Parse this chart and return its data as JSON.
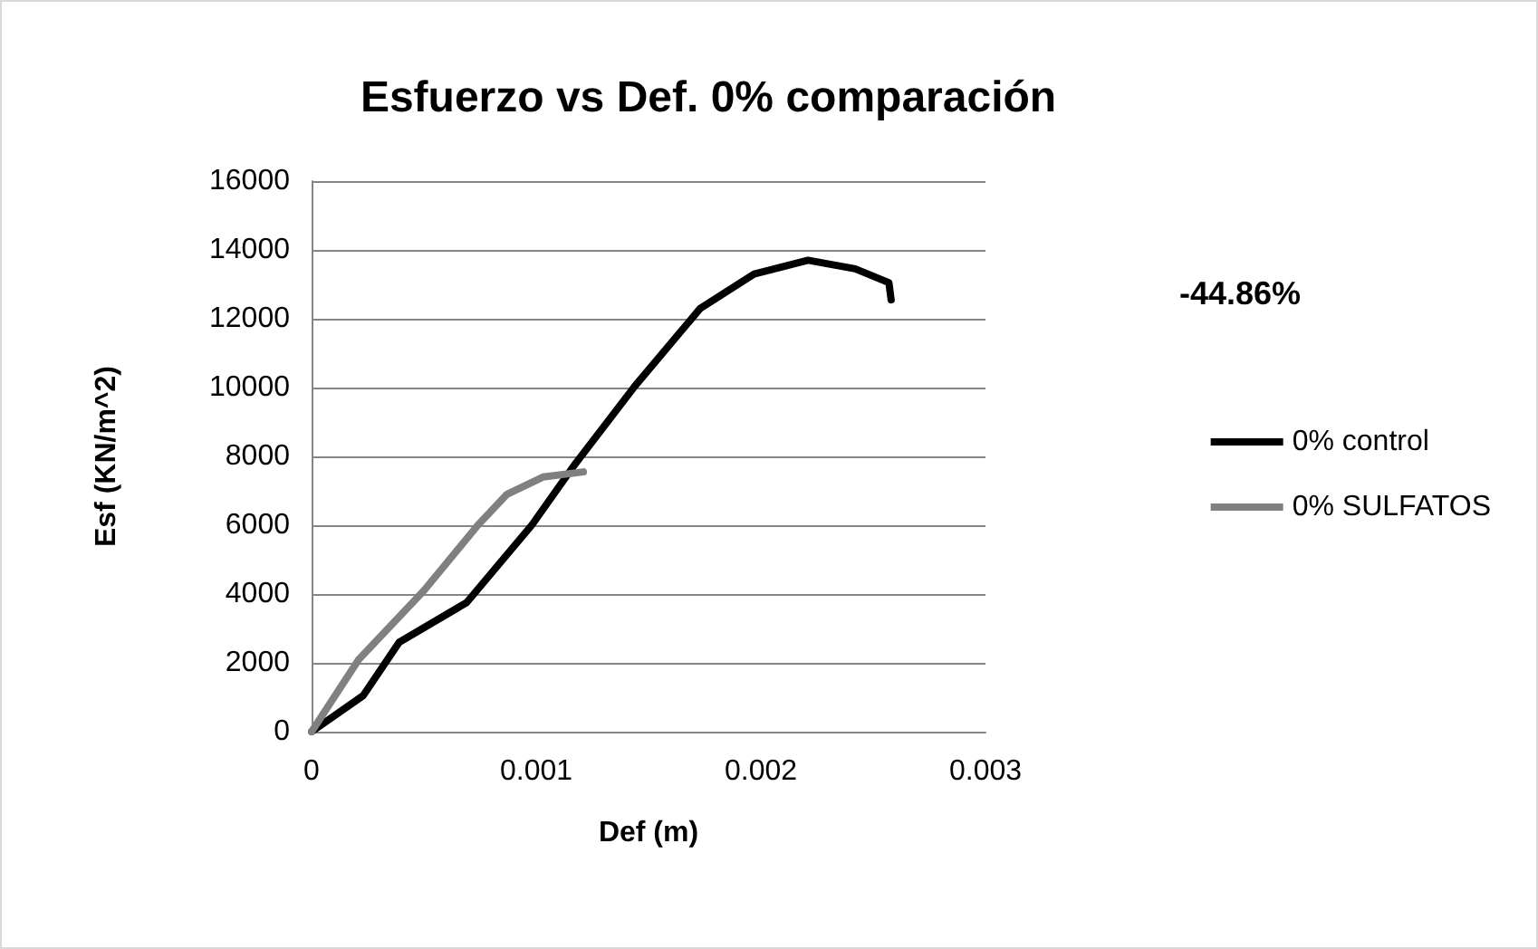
{
  "chart_data": {
    "type": "line",
    "title": "Esfuerzo vs Def. 0% comparación",
    "xlabel": "Def (m)",
    "ylabel": "Esf (KN/m^2)",
    "annotations": [
      "-44.86%"
    ],
    "series": [
      {
        "name": "0% control",
        "color": "#000000",
        "x": [
          0,
          0.00023,
          0.00039,
          0.00069,
          0.00098,
          0.00117,
          0.00144,
          0.00173,
          0.00197,
          0.00221,
          0.00242,
          0.00257,
          0.00258
        ],
        "values": [
          0,
          1050,
          2600,
          3750,
          6000,
          7750,
          10050,
          12300,
          13300,
          13700,
          13450,
          13050,
          12550
        ]
      },
      {
        "name": "0% SULFATOS",
        "color": "#808080",
        "x": [
          0,
          0.00021,
          0.0005,
          0.00074,
          0.00087,
          0.00103,
          0.00121
        ],
        "values": [
          0,
          2100,
          4100,
          6000,
          6900,
          7400,
          7550
        ]
      }
    ],
    "xlim": [
      0,
      0.003
    ],
    "xticks": [
      0,
      0.001,
      0.002,
      0.003
    ],
    "ylim": [
      0,
      16000
    ],
    "yticks": [
      0,
      2000,
      4000,
      6000,
      8000,
      10000,
      12000,
      14000,
      16000
    ],
    "grid": "y",
    "legend": "right",
    "marker": "none",
    "line_style": "solid"
  }
}
